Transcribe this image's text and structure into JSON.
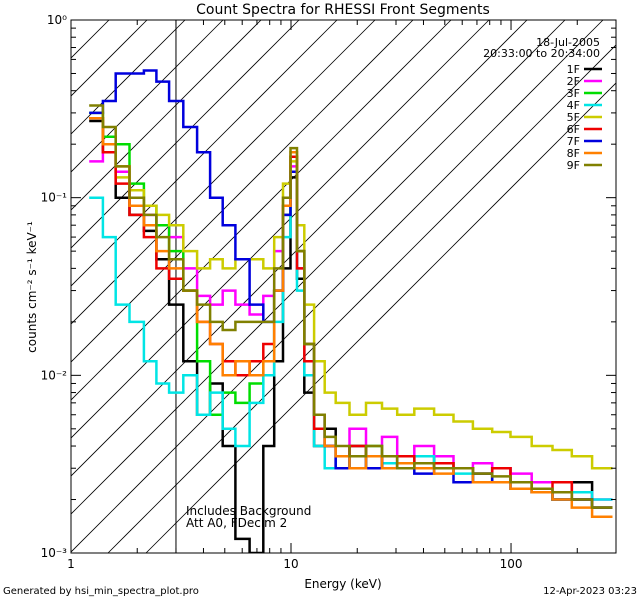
{
  "chart_data": {
    "type": "line",
    "title": "Count Spectra for RHESSI Front Segments",
    "xlabel": "Energy (keV)",
    "ylabel": "counts cm⁻² s⁻¹ keV⁻¹",
    "xscale": "log",
    "yscale": "log",
    "xlim": [
      1.0,
      300.0
    ],
    "ylim": [
      0.001,
      1.0
    ],
    "x_ticks": [
      "1",
      "10",
      "100"
    ],
    "y_ticks": [
      "10⁻³",
      "10⁻²",
      "10⁻¹",
      "10⁰"
    ],
    "legend_position": "top-right",
    "date": "18-Jul-2005",
    "time_range": "20:33:00 to 20:34:00",
    "annotations": [
      "Includes Background",
      "Att A0, FDecim 2"
    ],
    "excluded_region_keV": [
      1.0,
      3.0
    ],
    "x": [
      1.3,
      1.5,
      1.7,
      2.0,
      2.3,
      2.6,
      3.0,
      3.5,
      4.0,
      4.6,
      5.2,
      6.0,
      7.0,
      8.0,
      8.8,
      9.6,
      10.3,
      11.0,
      12.0,
      13.5,
      15,
      17,
      20,
      24,
      28,
      33,
      40,
      50,
      60,
      75,
      90,
      110,
      140,
      170,
      210,
      260
    ],
    "series": [
      {
        "name": "1F",
        "color": "#000000",
        "values": [
          0.27,
          0.18,
          0.1,
          0.08,
          0.065,
          0.045,
          0.025,
          0.012,
          0.006,
          0.009,
          0.004,
          0.0012,
          0.001,
          0.004,
          0.012,
          0.04,
          0.13,
          0.035,
          0.008,
          0.004,
          0.005,
          0.003,
          0.004,
          0.0035,
          0.003,
          0.003,
          0.0035,
          0.003,
          0.003,
          0.0025,
          0.003,
          0.0025,
          0.0022,
          0.002,
          0.0025,
          0.0018
        ]
      },
      {
        "name": "2F",
        "color": "#ff00ff",
        "values": [
          0.16,
          0.18,
          0.14,
          0.1,
          0.08,
          0.07,
          0.06,
          0.04,
          0.028,
          0.025,
          0.03,
          0.025,
          0.022,
          0.028,
          0.05,
          0.09,
          0.15,
          0.04,
          0.012,
          0.006,
          0.004,
          0.003,
          0.005,
          0.003,
          0.0045,
          0.0035,
          0.004,
          0.0035,
          0.003,
          0.0032,
          0.003,
          0.0028,
          0.0025,
          0.0025,
          0.0022,
          0.002
        ]
      },
      {
        "name": "3F",
        "color": "#00dd00",
        "values": [
          0.3,
          0.22,
          0.2,
          0.12,
          0.09,
          0.07,
          0.05,
          0.03,
          0.012,
          0.006,
          0.008,
          0.007,
          0.009,
          0.012,
          0.03,
          0.08,
          0.17,
          0.05,
          0.015,
          0.006,
          0.004,
          0.0035,
          0.003,
          0.004,
          0.0035,
          0.003,
          0.003,
          0.0032,
          0.003,
          0.0028,
          0.0025,
          0.0025,
          0.0022,
          0.002,
          0.002,
          0.0018
        ]
      },
      {
        "name": "4F",
        "color": "#00e5e5",
        "values": [
          0.1,
          0.06,
          0.025,
          0.02,
          0.012,
          0.009,
          0.008,
          0.01,
          0.006,
          0.008,
          0.005,
          0.004,
          0.007,
          0.01,
          0.02,
          0.06,
          0.14,
          0.03,
          0.01,
          0.004,
          0.003,
          0.0035,
          0.003,
          0.003,
          0.0032,
          0.003,
          0.0035,
          0.003,
          0.0028,
          0.0025,
          0.0025,
          0.0023,
          0.0022,
          0.002,
          0.0022,
          0.002
        ]
      },
      {
        "name": "5F",
        "color": "#cccc00",
        "values": [
          0.28,
          0.2,
          0.13,
          0.11,
          0.09,
          0.08,
          0.07,
          0.05,
          0.04,
          0.045,
          0.04,
          0.045,
          0.045,
          0.04,
          0.06,
          0.12,
          0.16,
          0.07,
          0.025,
          0.012,
          0.008,
          0.007,
          0.006,
          0.007,
          0.0065,
          0.006,
          0.0065,
          0.006,
          0.0055,
          0.005,
          0.0048,
          0.0045,
          0.004,
          0.0038,
          0.0035,
          0.003
        ]
      },
      {
        "name": "6F",
        "color": "#ee0000",
        "values": [
          0.28,
          0.18,
          0.12,
          0.08,
          0.06,
          0.04,
          0.035,
          0.03,
          0.02,
          0.015,
          0.012,
          0.01,
          0.012,
          0.015,
          0.03,
          0.09,
          0.17,
          0.04,
          0.012,
          0.005,
          0.004,
          0.0035,
          0.004,
          0.0035,
          0.003,
          0.0035,
          0.003,
          0.0032,
          0.003,
          0.0028,
          0.003,
          0.0025,
          0.0022,
          0.0025,
          0.002,
          0.0018
        ]
      },
      {
        "name": "7F",
        "color": "#0000dd",
        "values": [
          0.3,
          0.35,
          0.5,
          0.5,
          0.52,
          0.45,
          0.35,
          0.25,
          0.18,
          0.1,
          0.07,
          0.045,
          0.025,
          0.02,
          0.03,
          0.08,
          0.14,
          0.05,
          0.015,
          0.006,
          0.004,
          0.003,
          0.0035,
          0.003,
          0.0035,
          0.003,
          0.0028,
          0.003,
          0.0025,
          0.0028,
          0.0025,
          0.0023,
          0.0022,
          0.002,
          0.002,
          0.0018
        ]
      },
      {
        "name": "8F",
        "color": "#ff8000",
        "values": [
          0.28,
          0.2,
          0.15,
          0.09,
          0.07,
          0.05,
          0.04,
          0.03,
          0.02,
          0.015,
          0.01,
          0.012,
          0.01,
          0.012,
          0.03,
          0.09,
          0.18,
          0.05,
          0.015,
          0.006,
          0.004,
          0.0035,
          0.003,
          0.0035,
          0.003,
          0.0032,
          0.003,
          0.0028,
          0.003,
          0.0025,
          0.0025,
          0.0023,
          0.0022,
          0.002,
          0.0018,
          0.0016
        ]
      },
      {
        "name": "9F",
        "color": "#808000",
        "values": [
          0.33,
          0.25,
          0.15,
          0.1,
          0.08,
          0.06,
          0.045,
          0.03,
          0.025,
          0.02,
          0.018,
          0.02,
          0.02,
          0.02,
          0.04,
          0.1,
          0.19,
          0.05,
          0.015,
          0.006,
          0.0045,
          0.004,
          0.0035,
          0.004,
          0.0035,
          0.003,
          0.0032,
          0.003,
          0.003,
          0.0028,
          0.0027,
          0.0025,
          0.0023,
          0.0022,
          0.002,
          0.0018
        ]
      }
    ]
  },
  "footer": {
    "left": "Generated by hsi_min_spectra_plot.pro",
    "right": "12-Apr-2023 03:23"
  }
}
